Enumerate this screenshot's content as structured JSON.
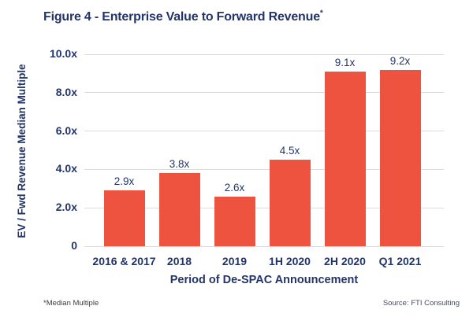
{
  "title": {
    "text": "Figure 4 - Enterprise Value to Forward Revenue",
    "superscript": "*"
  },
  "colors": {
    "navy": "#233568",
    "bar": "#EE5340",
    "gridline": "#DBDBDB"
  },
  "chart_data": {
    "type": "bar",
    "categories": [
      "2016 & 2017",
      "2018",
      "2019",
      "1H 2020",
      "2H 2020",
      "Q1 2021"
    ],
    "values": [
      2.9,
      3.8,
      2.6,
      4.5,
      9.1,
      9.2
    ],
    "value_labels": [
      "2.9x",
      "3.8x",
      "2.6x",
      "4.5x",
      "9.1x",
      "9.2x"
    ],
    "xlabel": "Period of De-SPAC Announcement",
    "ylabel": "EV / Fwd Revenue Median Multiple",
    "ylim": [
      0,
      10
    ],
    "yticks": [
      {
        "value": 10,
        "label": "10.0x"
      },
      {
        "value": 8,
        "label": "8.0x"
      },
      {
        "value": 6,
        "label": "6.0x"
      },
      {
        "value": 4,
        "label": "4.0x"
      },
      {
        "value": 2,
        "label": "2.0x"
      },
      {
        "value": 0,
        "label": "0"
      }
    ],
    "grid": true,
    "legend": "none",
    "bar_color": "#EE5340"
  },
  "footer": {
    "footnote": "*Median Multiple",
    "source": "Source: FTI Consulting"
  }
}
